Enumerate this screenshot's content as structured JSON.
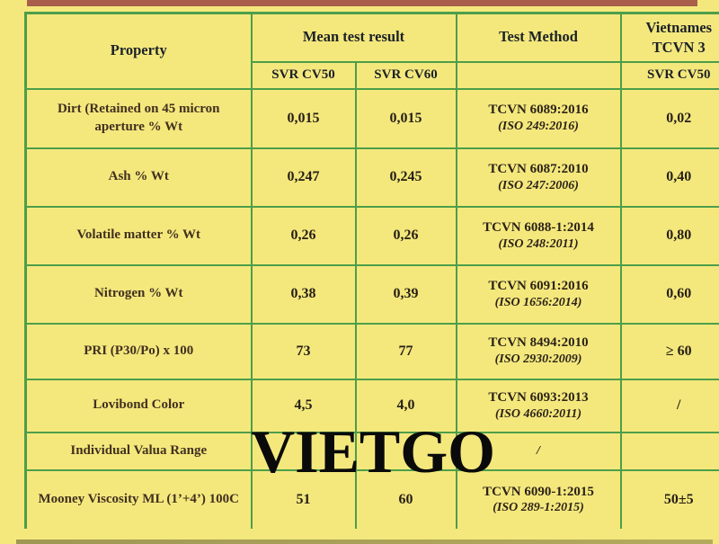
{
  "watermark": "VIETGO",
  "table": {
    "headers": {
      "property": "Property",
      "mean_test_result": "Mean test result",
      "test_method": "Test Method",
      "vietnamese_line1": "Vietnames",
      "vietnamese_line2": "TCVN 3",
      "sub_svr_cv50": "SVR CV50",
      "sub_svr_cv60": "SVR CV60",
      "sub_vn_svr_cv50": "SVR CV50"
    },
    "rows": [
      {
        "property": "Dirt (Retained on 45 micron aperture % Wt",
        "cv50": "0,015",
        "cv60": "0,015",
        "method_tcvn": "TCVN 6089:2016",
        "method_iso": "(ISO 249:2016)",
        "vn_limit": "0,02"
      },
      {
        "property": "Ash % Wt",
        "cv50": "0,247",
        "cv60": "0,245",
        "method_tcvn": "TCVN 6087:2010",
        "method_iso": "(ISO 247:2006)",
        "vn_limit": "0,40"
      },
      {
        "property": "Volatile matter % Wt",
        "cv50": "0,26",
        "cv60": "0,26",
        "method_tcvn": "TCVN 6088-1:2014",
        "method_iso": "(ISO 248:2011)",
        "vn_limit": "0,80"
      },
      {
        "property": "Nitrogen % Wt",
        "cv50": "0,38",
        "cv60": "0,39",
        "method_tcvn": "TCVN 6091:2016",
        "method_iso": "(ISO 1656:2014)",
        "vn_limit": "0,60"
      },
      {
        "property": "PRI (P30/Po) x 100",
        "cv50": "73",
        "cv60": "77",
        "method_tcvn": "TCVN 8494:2010",
        "method_iso": "(ISO 2930:2009)",
        "vn_limit": "≥ 60"
      },
      {
        "property": "Lovibond Color",
        "cv50": "4,5",
        "cv60": "4,0",
        "method_tcvn": "TCVN 6093:2013",
        "method_iso": "(ISO 4660:2011)",
        "vn_limit": "/"
      },
      {
        "property": "Individual Valua Range",
        "cv50": "",
        "cv60": "",
        "method_tcvn": "/",
        "method_iso": "",
        "vn_limit": ""
      },
      {
        "property": "Mooney Viscosity ML (1’+4’) 100C",
        "cv50": "51",
        "cv60": "60",
        "method_tcvn": "TCVN 6090-1:2015",
        "method_iso": "(ISO 289-1:2015)",
        "vn_limit": "50±5"
      }
    ]
  },
  "colors": {
    "page_background": "#f4e87d",
    "grid_green": "#4d9e4a",
    "top_strip": "#a85e4b",
    "bottom_strip": "#a89f56",
    "header_text": "#1c2127",
    "body_text": "#2c2217",
    "watermark_text": "#0a0a0a"
  }
}
